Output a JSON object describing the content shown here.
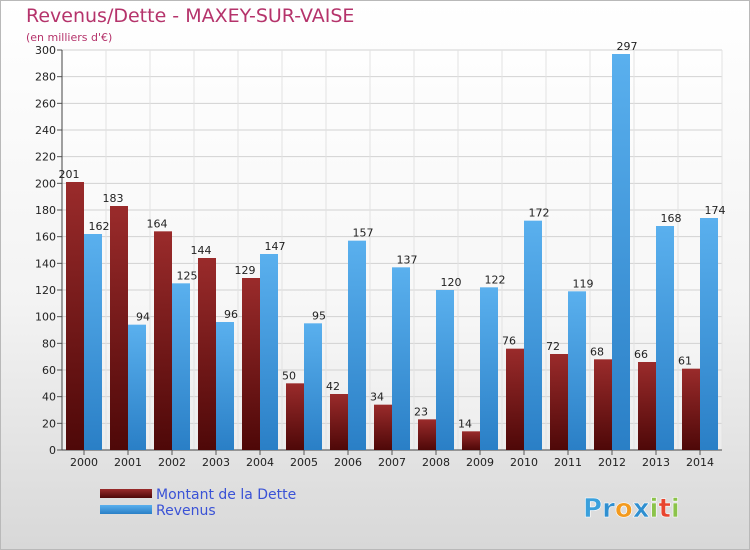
{
  "chart_data": {
    "type": "bar",
    "title": "Revenus/Dette - MAXEY-SUR-VAISE",
    "subtitle": "(en milliers d'€)",
    "categories": [
      "2000",
      "2001",
      "2002",
      "2003",
      "2004",
      "2005",
      "2006",
      "2007",
      "2008",
      "2009",
      "2010",
      "2011",
      "2012",
      "2013",
      "2014"
    ],
    "series": [
      {
        "name": "Montant de la Dette",
        "color": "#7a1c1c",
        "values": [
          201,
          183,
          164,
          144,
          129,
          50,
          42,
          34,
          23,
          14,
          76,
          72,
          68,
          66,
          61
        ]
      },
      {
        "name": "Revenus",
        "color": "#3f9be0",
        "values": [
          162,
          94,
          125,
          96,
          147,
          95,
          157,
          137,
          120,
          122,
          172,
          119,
          297,
          168,
          174
        ]
      }
    ],
    "ylim": [
      0,
      300
    ],
    "yticks": [
      0,
      20,
      40,
      60,
      80,
      100,
      120,
      140,
      160,
      180,
      200,
      220,
      240,
      260,
      280,
      300
    ],
    "grid": true,
    "legend_position": "bottom-left"
  },
  "branding": {
    "logo_text": "Proxiti",
    "letters": [
      {
        "ch": "P",
        "color": "#3aa0dc"
      },
      {
        "ch": "r",
        "color": "#2f8fd0"
      },
      {
        "ch": "o",
        "color": "#f39a1e"
      },
      {
        "ch": "x",
        "color": "#2f8fd0"
      },
      {
        "ch": "i",
        "color": "#8bc34a"
      },
      {
        "ch": "t",
        "color": "#e8442e"
      },
      {
        "ch": "i",
        "color": "#8bc34a"
      }
    ]
  }
}
